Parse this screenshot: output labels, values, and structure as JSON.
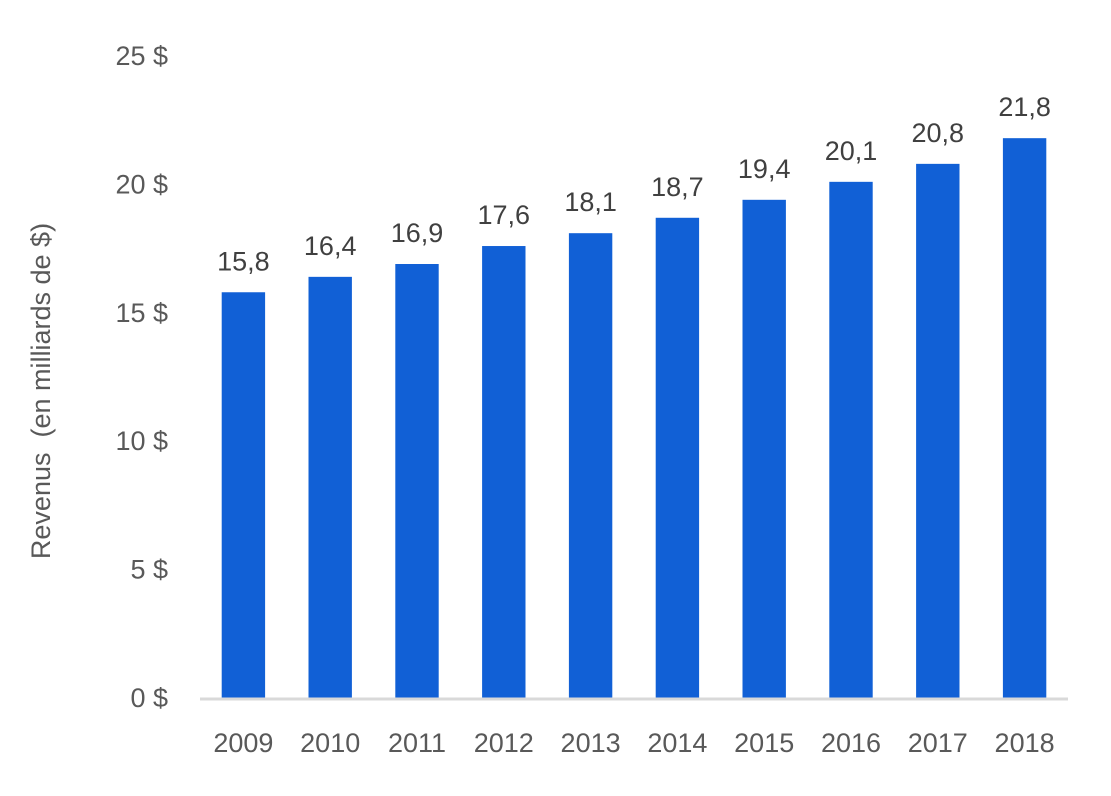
{
  "chart_data": {
    "type": "bar",
    "title": "",
    "xlabel": "",
    "ylabel": "Revenus  (en milliards de $)",
    "categories": [
      "2009",
      "2010",
      "2011",
      "2012",
      "2013",
      "2014",
      "2015",
      "2016",
      "2017",
      "2018"
    ],
    "values": [
      15.8,
      16.4,
      16.9,
      17.6,
      18.1,
      18.7,
      19.4,
      20.1,
      20.8,
      21.8
    ],
    "data_labels": [
      "15,8",
      "16,4",
      "16,9",
      "17,6",
      "18,1",
      "18,7",
      "19,4",
      "20,1",
      "20,8",
      "21,8"
    ],
    "ylim": [
      0,
      25
    ],
    "yticks": [
      0,
      5,
      10,
      15,
      20,
      25
    ],
    "ytick_labels": [
      "0 $",
      "5 $",
      "10 $",
      "15 $",
      "20 $",
      "25 $"
    ],
    "grid": false,
    "legend": "none",
    "colors": {
      "bar": "#1160d6",
      "axis_line": "#d9d9d9"
    }
  }
}
